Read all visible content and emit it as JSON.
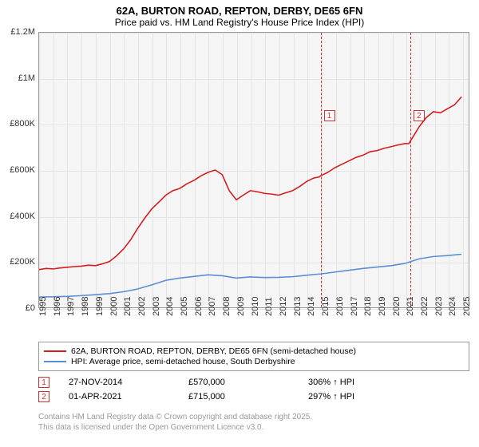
{
  "title_line1": "62A, BURTON ROAD, REPTON, DERBY, DE65 6FN",
  "title_line2": "Price paid vs. HM Land Registry's House Price Index (HPI)",
  "chart": {
    "type": "line",
    "background_color": "#f5f5f5",
    "grid_color": "#e4e4e4",
    "border_color": "#999999",
    "x_years": [
      1995,
      1996,
      1997,
      1998,
      1999,
      2000,
      2001,
      2002,
      2003,
      2004,
      2005,
      2006,
      2007,
      2008,
      2009,
      2010,
      2011,
      2012,
      2013,
      2014,
      2015,
      2016,
      2017,
      2018,
      2019,
      2020,
      2021,
      2022,
      2023,
      2024,
      2025
    ],
    "xmin": 1995,
    "xmax": 2025.5,
    "ymin": 0,
    "ymax": 1200000,
    "yticks": [
      0,
      200000,
      400000,
      600000,
      800000,
      1000000,
      1200000
    ],
    "yticklabels": [
      "£0",
      "£200K",
      "£400K",
      "£600K",
      "£800K",
      "£1M",
      "£1.2M"
    ],
    "tick_fontsize": 11,
    "series": [
      {
        "name": "62A, BURTON ROAD, REPTON, DERBY, DE65 6FN (semi-detached house)",
        "color": "#d41e1e",
        "line_width": 1.6,
        "points": [
          [
            1995,
            165000
          ],
          [
            1995.5,
            170000
          ],
          [
            1996,
            168000
          ],
          [
            1996.5,
            172000
          ],
          [
            1997,
            175000
          ],
          [
            1997.5,
            178000
          ],
          [
            1998,
            180000
          ],
          [
            1998.5,
            184000
          ],
          [
            1999,
            182000
          ],
          [
            1999.5,
            190000
          ],
          [
            2000,
            200000
          ],
          [
            2000.5,
            225000
          ],
          [
            2001,
            255000
          ],
          [
            2001.5,
            295000
          ],
          [
            2002,
            345000
          ],
          [
            2002.5,
            390000
          ],
          [
            2003,
            430000
          ],
          [
            2003.5,
            460000
          ],
          [
            2004,
            490000
          ],
          [
            2004.5,
            510000
          ],
          [
            2005,
            520000
          ],
          [
            2005.5,
            540000
          ],
          [
            2006,
            555000
          ],
          [
            2006.5,
            575000
          ],
          [
            2007,
            590000
          ],
          [
            2007.5,
            600000
          ],
          [
            2008,
            580000
          ],
          [
            2008.5,
            510000
          ],
          [
            2009,
            470000
          ],
          [
            2009.5,
            490000
          ],
          [
            2010,
            510000
          ],
          [
            2010.5,
            505000
          ],
          [
            2011,
            498000
          ],
          [
            2011.5,
            495000
          ],
          [
            2012,
            490000
          ],
          [
            2012.5,
            500000
          ],
          [
            2013,
            510000
          ],
          [
            2013.5,
            528000
          ],
          [
            2014,
            550000
          ],
          [
            2014.5,
            565000
          ],
          [
            2014.9,
            570000
          ],
          [
            2015,
            575000
          ],
          [
            2015.5,
            590000
          ],
          [
            2016,
            610000
          ],
          [
            2016.5,
            625000
          ],
          [
            2017,
            640000
          ],
          [
            2017.5,
            655000
          ],
          [
            2018,
            665000
          ],
          [
            2018.5,
            680000
          ],
          [
            2019,
            685000
          ],
          [
            2019.5,
            695000
          ],
          [
            2020,
            702000
          ],
          [
            2020.5,
            710000
          ],
          [
            2021,
            716000
          ],
          [
            2021.25,
            715000
          ],
          [
            2021.5,
            740000
          ],
          [
            2022,
            790000
          ],
          [
            2022.5,
            830000
          ],
          [
            2023,
            855000
          ],
          [
            2023.5,
            850000
          ],
          [
            2024,
            868000
          ],
          [
            2024.5,
            885000
          ],
          [
            2025,
            920000
          ]
        ]
      },
      {
        "name": "HPI: Average price, semi-detached house, South Derbyshire",
        "color": "#5a8fd6",
        "line_width": 1.6,
        "points": [
          [
            1995,
            45000
          ],
          [
            1996,
            46000
          ],
          [
            1997,
            48000
          ],
          [
            1998,
            51000
          ],
          [
            1999,
            55000
          ],
          [
            2000,
            60000
          ],
          [
            2001,
            68000
          ],
          [
            2002,
            80000
          ],
          [
            2003,
            98000
          ],
          [
            2004,
            118000
          ],
          [
            2005,
            128000
          ],
          [
            2006,
            135000
          ],
          [
            2007,
            142000
          ],
          [
            2008,
            138000
          ],
          [
            2009,
            128000
          ],
          [
            2010,
            133000
          ],
          [
            2011,
            130000
          ],
          [
            2012,
            131000
          ],
          [
            2013,
            134000
          ],
          [
            2014,
            140000
          ],
          [
            2015,
            146000
          ],
          [
            2016,
            154000
          ],
          [
            2017,
            162000
          ],
          [
            2018,
            170000
          ],
          [
            2019,
            176000
          ],
          [
            2020,
            182000
          ],
          [
            2021,
            192000
          ],
          [
            2022,
            212000
          ],
          [
            2023,
            222000
          ],
          [
            2024,
            226000
          ],
          [
            2025,
            232000
          ]
        ]
      }
    ],
    "markers": [
      {
        "n": "1",
        "x": 2014.91
      },
      {
        "n": "2",
        "x": 2021.25
      }
    ]
  },
  "legend_items": [
    {
      "color": "#d41e1e",
      "label": "62A, BURTON ROAD, REPTON, DERBY, DE65 6FN (semi-detached house)"
    },
    {
      "color": "#5a8fd6",
      "label": "HPI: Average price, semi-detached house, South Derbyshire"
    }
  ],
  "events": [
    {
      "n": "1",
      "date": "27-NOV-2014",
      "price": "£570,000",
      "hpi": "306% ↑ HPI"
    },
    {
      "n": "2",
      "date": "01-APR-2021",
      "price": "£715,000",
      "hpi": "297% ↑ HPI"
    }
  ],
  "footer_line1": "Contains HM Land Registry data © Crown copyright and database right 2025.",
  "footer_line2": "This data is licensed under the Open Government Licence v3.0."
}
